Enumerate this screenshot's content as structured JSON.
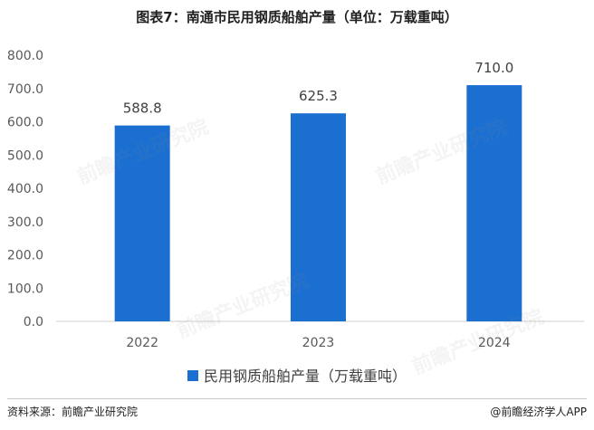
{
  "title": "图表7：南通市民用钢质船舶产量（单位：万载重吨）",
  "source": "资料来源：前瞻产业研究院",
  "credit": "@前瞻经济学人APP",
  "watermark": "前瞻产业研究院",
  "colors": {
    "bar": "#1a6fd1"
  },
  "chart_data": {
    "type": "bar",
    "categories": [
      "2022",
      "2023",
      "2024"
    ],
    "series": [
      {
        "name": "民用钢质船舶产量（万载重吨）",
        "values": [
          588.8,
          625.3,
          710.0
        ]
      }
    ],
    "data_labels": [
      "588.8",
      "625.3",
      "710.0"
    ],
    "yticks": [
      "0.0",
      "100.0",
      "200.0",
      "300.0",
      "400.0",
      "500.0",
      "600.0",
      "700.0",
      "800.0"
    ],
    "ylim": [
      0,
      800
    ],
    "grid": false,
    "legend_position": "bottom"
  }
}
